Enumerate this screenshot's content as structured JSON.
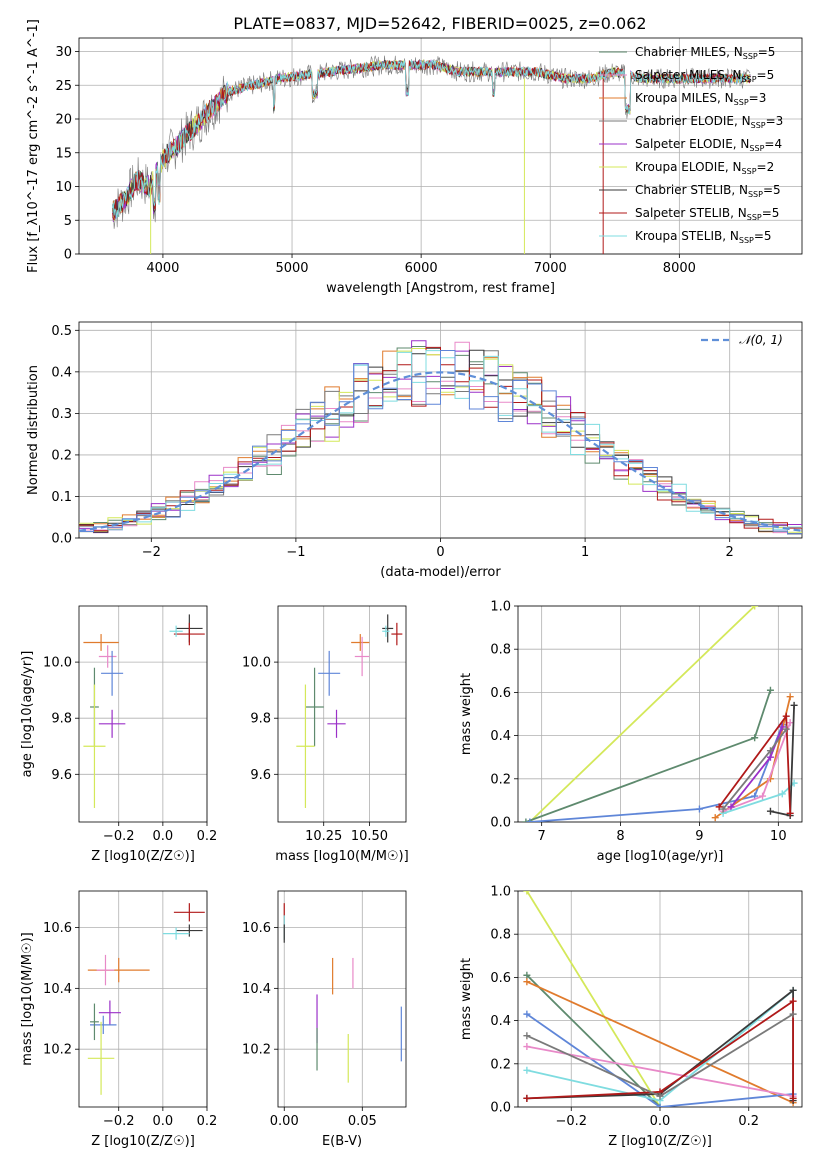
{
  "figure_title": "PLATE=0837, MJD=52642, FIBERID=0025, z=0.062",
  "colors": {
    "series_1": "#5e8a6e",
    "series_2": "#e889c8",
    "series_3": "#e07b2d",
    "series_4": "#7a7a7a",
    "series_5": "#9b30c8",
    "series_6": "#d4e85a",
    "series_7": "#3a3a3a",
    "series_8": "#b01919",
    "series_9": "#7fdce0",
    "series_10": "#5f86d8",
    "gaussian": "#5f8fd8",
    "grid": "#b0b0b0"
  },
  "series_colors": [
    "#5e8a6e",
    "#e889c8",
    "#e07b2d",
    "#7a7a7a",
    "#9b30c8",
    "#d4e85a",
    "#3a3a3a",
    "#b01919",
    "#7fdce0",
    "#5f86d8"
  ],
  "chart_data": [
    {
      "id": "spectrum",
      "type": "line",
      "xlabel": "wavelength [Angstrom, rest frame]",
      "ylabel": "Flux [f_λ10^-17 erg cm^-2 s^-1 A^-1]",
      "xlim": [
        3350,
        8950
      ],
      "ylim": [
        0,
        32
      ],
      "xticks": [
        4000,
        5000,
        6000,
        7000,
        8000
      ],
      "yticks": [
        0,
        5,
        10,
        15,
        20,
        25,
        30
      ],
      "legend": [
        "Chabrier MILES, N_SSP=5",
        "Salpeter MILES, N_SSP=5",
        "Kroupa MILES, N_SSP=3",
        "Chabrier ELODIE, N_SSP=3",
        "Salpeter ELODIE, N_SSP=4",
        "Kroupa ELODIE, N_SSP=2",
        "Chabrier STELIB, N_SSP=5",
        "Salpeter STELIB, N_SSP=5",
        "Kroupa STELIB, N_SSP=5"
      ],
      "legend_position": "upper-right",
      "spectrum_knots": {
        "x": [
          3600,
          3700,
          3800,
          3900,
          4000,
          4100,
          4200,
          4300,
          4400,
          4500,
          4700,
          4900,
          5100,
          5300,
          5500,
          5700,
          5900,
          6100,
          6300,
          6500,
          6700,
          6900,
          7100,
          7300,
          7500,
          7700,
          7900,
          8200,
          8500
        ],
        "y": [
          6,
          8,
          11,
          10,
          14,
          16,
          18,
          20,
          22,
          24,
          25,
          26,
          26.5,
          27,
          27.5,
          28,
          28,
          28,
          27,
          27,
          27,
          27,
          26,
          26,
          27,
          26,
          26,
          26,
          26
        ]
      }
    },
    {
      "id": "residual_hist",
      "type": "line",
      "xlabel": "(data-model)/error",
      "ylabel": "Normed distribution",
      "xlim": [
        -2.5,
        2.5
      ],
      "ylim": [
        0,
        0.52
      ],
      "xticks": [
        -2,
        -1,
        0,
        1,
        2
      ],
      "yticks": [
        0.0,
        0.1,
        0.2,
        0.3,
        0.4,
        0.5
      ],
      "legend": [
        "𝒩(0, 1)"
      ],
      "legend_position": "upper-right"
    },
    {
      "id": "age_vs_Z",
      "type": "scatter",
      "xlabel": "Z [log10(Z/Z☉)]",
      "ylabel": "age  [log10(age/yr)]",
      "xlim": [
        -0.38,
        0.2
      ],
      "ylim": [
        9.43,
        10.2
      ],
      "xticks": [
        -0.2,
        0.0,
        0.2
      ],
      "xticklabels": [
        "−0.2",
        "0.0",
        "0.2"
      ],
      "yticks": [
        9.6,
        9.8,
        10.0
      ],
      "points": [
        {
          "x": 0.12,
          "xerr": 0.06,
          "y": 10.12,
          "yerr": 0.05,
          "c": 7
        },
        {
          "x": 0.12,
          "xerr": 0.07,
          "y": 10.1,
          "yerr": 0.04,
          "c": 8
        },
        {
          "x": 0.06,
          "xerr": 0.03,
          "y": 10.11,
          "yerr": 0.02,
          "c": 9
        },
        {
          "x": -0.28,
          "xerr": 0.08,
          "y": 10.07,
          "yerr": 0.03,
          "c": 3
        },
        {
          "x": -0.25,
          "xerr": 0.04,
          "y": 10.02,
          "yerr": 0.04,
          "c": 2
        },
        {
          "x": -0.23,
          "xerr": 0.05,
          "y": 9.96,
          "yerr": 0.08,
          "c": 10
        },
        {
          "x": -0.31,
          "xerr": 0.02,
          "y": 9.84,
          "yerr": 0.14,
          "c": 1
        },
        {
          "x": -0.23,
          "xerr": 0.06,
          "y": 9.78,
          "yerr": 0.05,
          "c": 5
        },
        {
          "x": -0.31,
          "xerr": 0.05,
          "y": 9.7,
          "yerr": 0.22,
          "c": 6
        }
      ]
    },
    {
      "id": "age_vs_mass",
      "type": "scatter",
      "xlabel": "mass [log10(M/M☉)]",
      "ylabel": "",
      "xlim": [
        10.0,
        10.7
      ],
      "ylim": [
        9.43,
        10.2
      ],
      "xticks": [
        10.25,
        10.5
      ],
      "xticklabels": [
        "10.25",
        "10.50"
      ],
      "yticks": [
        9.6,
        9.8,
        10.0
      ],
      "points": [
        {
          "x": 10.6,
          "xerr": 0.03,
          "y": 10.12,
          "yerr": 0.05,
          "c": 7
        },
        {
          "x": 10.65,
          "xerr": 0.03,
          "y": 10.1,
          "yerr": 0.04,
          "c": 8
        },
        {
          "x": 10.59,
          "xerr": 0.02,
          "y": 10.11,
          "yerr": 0.02,
          "c": 9
        },
        {
          "x": 10.45,
          "xerr": 0.05,
          "y": 10.07,
          "yerr": 0.03,
          "c": 3
        },
        {
          "x": 10.46,
          "xerr": 0.04,
          "y": 10.02,
          "yerr": 0.07,
          "c": 2
        },
        {
          "x": 10.28,
          "xerr": 0.06,
          "y": 9.96,
          "yerr": 0.08,
          "c": 10
        },
        {
          "x": 10.2,
          "xerr": 0.05,
          "y": 9.84,
          "yerr": 0.14,
          "c": 1
        },
        {
          "x": 10.32,
          "xerr": 0.05,
          "y": 9.78,
          "yerr": 0.05,
          "c": 5
        },
        {
          "x": 10.15,
          "xerr": 0.05,
          "y": 9.7,
          "yerr": 0.22,
          "c": 6
        }
      ]
    },
    {
      "id": "weight_vs_age",
      "type": "line",
      "xlabel": "age  [log10(age/yr)]",
      "ylabel": "mass weight",
      "xlim": [
        6.7,
        10.3
      ],
      "ylim": [
        0,
        1.0
      ],
      "xticks": [
        7,
        8,
        9,
        10
      ],
      "yticks": [
        0.0,
        0.2,
        0.4,
        0.6,
        0.8,
        1.0
      ],
      "series": [
        {
          "c": 6,
          "x": [
            6.85,
            9.7
          ],
          "y": [
            0.0,
            1.0
          ]
        },
        {
          "c": 1,
          "x": [
            6.8,
            9.7,
            9.9
          ],
          "y": [
            0.0,
            0.39,
            0.61
          ]
        },
        {
          "c": 10,
          "x": [
            6.85,
            9.0,
            9.7,
            10.05
          ],
          "y": [
            0.0,
            0.06,
            0.12,
            0.45
          ]
        },
        {
          "c": 3,
          "x": [
            9.2,
            9.9,
            10.15
          ],
          "y": [
            0.02,
            0.2,
            0.58
          ]
        },
        {
          "c": 2,
          "x": [
            9.3,
            9.8,
            10.15
          ],
          "y": [
            0.05,
            0.12,
            0.46
          ]
        },
        {
          "c": 5,
          "x": [
            9.4,
            9.9,
            10.05
          ],
          "y": [
            0.07,
            0.3,
            0.44
          ]
        },
        {
          "c": 9,
          "x": [
            9.3,
            10.05,
            10.2
          ],
          "y": [
            0.04,
            0.13,
            0.18
          ]
        },
        {
          "c": 7,
          "x": [
            9.9,
            10.15,
            10.2
          ],
          "y": [
            0.05,
            0.03,
            0.54
          ]
        },
        {
          "c": 8,
          "x": [
            9.25,
            10.1,
            10.15
          ],
          "y": [
            0.07,
            0.49,
            0.04
          ]
        },
        {
          "c": 4,
          "x": [
            9.3,
            9.9,
            10.1
          ],
          "y": [
            0.06,
            0.33,
            0.43
          ]
        }
      ]
    },
    {
      "id": "mass_vs_Z",
      "type": "scatter",
      "xlabel": "Z [log10(Z/Z☉)]",
      "ylabel": "mass [log10(M/M☉)]",
      "xlim": [
        -0.38,
        0.2
      ],
      "ylim": [
        10.01,
        10.72
      ],
      "xticks": [
        -0.2,
        0.0,
        0.2
      ],
      "xticklabels": [
        "−0.2",
        "0.0",
        "0.2"
      ],
      "yticks": [
        10.2,
        10.4,
        10.6
      ],
      "points": [
        {
          "x": 0.12,
          "xerr": 0.07,
          "y": 10.65,
          "yerr": 0.03,
          "c": 8
        },
        {
          "x": 0.12,
          "xerr": 0.06,
          "y": 10.59,
          "yerr": 0.02,
          "c": 7
        },
        {
          "x": 0.06,
          "xerr": 0.06,
          "y": 10.58,
          "yerr": 0.02,
          "c": 9
        },
        {
          "x": -0.2,
          "xerr": 0.14,
          "y": 10.46,
          "yerr": 0.04,
          "c": 3
        },
        {
          "x": -0.26,
          "xerr": 0.04,
          "y": 10.46,
          "yerr": 0.05,
          "c": 2
        },
        {
          "x": -0.24,
          "xerr": 0.05,
          "y": 10.32,
          "yerr": 0.04,
          "c": 5
        },
        {
          "x": -0.27,
          "xerr": 0.06,
          "y": 10.28,
          "yerr": 0.03,
          "c": 10
        },
        {
          "x": -0.31,
          "xerr": 0.02,
          "y": 10.29,
          "yerr": 0.06,
          "c": 1
        },
        {
          "x": -0.28,
          "xerr": 0.06,
          "y": 10.17,
          "yerr": 0.12,
          "c": 6
        }
      ]
    },
    {
      "id": "mass_vs_ebv",
      "type": "scatter",
      "xlabel": "E(B-V)",
      "ylabel": "",
      "xlim": [
        -0.004,
        0.078
      ],
      "ylim": [
        10.01,
        10.72
      ],
      "xticks": [
        0.0,
        0.05
      ],
      "xticklabels": [
        "0.00",
        "0.05"
      ],
      "yticks": [
        10.2,
        10.4,
        10.6
      ],
      "points": [
        {
          "x": 0.0,
          "xerr": 0,
          "y": 10.62,
          "yerr": 0.06,
          "c": 8
        },
        {
          "x": 0.0,
          "xerr": 0,
          "y": 10.6,
          "yerr": 0.04,
          "c": 9
        },
        {
          "x": 0.0,
          "xerr": 0,
          "y": 10.58,
          "yerr": 0.03,
          "c": 7
        },
        {
          "x": 0.031,
          "xerr": 0,
          "y": 10.44,
          "yerr": 0.06,
          "c": 3
        },
        {
          "x": 0.044,
          "xerr": 0,
          "y": 10.45,
          "yerr": 0.05,
          "c": 2
        },
        {
          "x": 0.021,
          "xerr": 0,
          "y": 10.3,
          "yerr": 0.08,
          "c": 5
        },
        {
          "x": 0.021,
          "xerr": 0,
          "y": 10.2,
          "yerr": 0.07,
          "c": 1
        },
        {
          "x": 0.041,
          "xerr": 0,
          "y": 10.17,
          "yerr": 0.08,
          "c": 6
        },
        {
          "x": 0.075,
          "xerr": 0,
          "y": 10.25,
          "yerr": 0.09,
          "c": 10
        }
      ]
    },
    {
      "id": "weight_vs_Z",
      "type": "line",
      "xlabel": "Z [log10(Z/Z☉)]",
      "ylabel": "mass weight",
      "xlim": [
        -0.32,
        0.32
      ],
      "ylim": [
        0,
        1.0
      ],
      "xticks": [
        -0.2,
        0.0,
        0.2
      ],
      "xticklabels": [
        "−0.2",
        "0.0",
        "0.2"
      ],
      "yticks": [
        0.0,
        0.2,
        0.4,
        0.6,
        0.8,
        1.0
      ],
      "series": [
        {
          "c": 6,
          "x": [
            -0.3,
            0.0
          ],
          "y": [
            1.0,
            0.0
          ]
        },
        {
          "c": 1,
          "x": [
            -0.3,
            0.0
          ],
          "y": [
            0.61,
            0.0
          ]
        },
        {
          "c": 3,
          "x": [
            -0.3,
            0.3
          ],
          "y": [
            0.58,
            0.02
          ]
        },
        {
          "c": 10,
          "x": [
            -0.3,
            0.0,
            0.3
          ],
          "y": [
            0.43,
            0.0,
            0.06
          ]
        },
        {
          "c": 2,
          "x": [
            -0.3,
            0.3
          ],
          "y": [
            0.28,
            0.05
          ]
        },
        {
          "c": 9,
          "x": [
            -0.3,
            0.0,
            0.3
          ],
          "y": [
            0.17,
            0.03,
            0.54
          ]
        },
        {
          "c": 7,
          "x": [
            -0.3,
            0.0,
            0.3,
            0.3
          ],
          "y": [
            0.04,
            0.06,
            0.54,
            0.03
          ]
        },
        {
          "c": 8,
          "x": [
            -0.3,
            0.0,
            0.3,
            0.3
          ],
          "y": [
            0.04,
            0.07,
            0.49,
            0.04
          ]
        },
        {
          "c": 4,
          "x": [
            -0.3,
            0.0,
            0.3
          ],
          "y": [
            0.33,
            0.05,
            0.43
          ]
        }
      ]
    }
  ]
}
